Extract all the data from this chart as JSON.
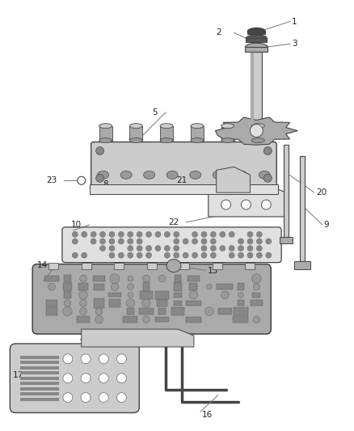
{
  "bg": "#ffffff",
  "dark": "#444444",
  "gray": "#888888",
  "med_gray": "#aaaaaa",
  "light_gray": "#cccccc",
  "very_light": "#e0e0e0",
  "label_color": "#333333",
  "figsize": [
    4.38,
    5.33
  ],
  "dpi": 100
}
